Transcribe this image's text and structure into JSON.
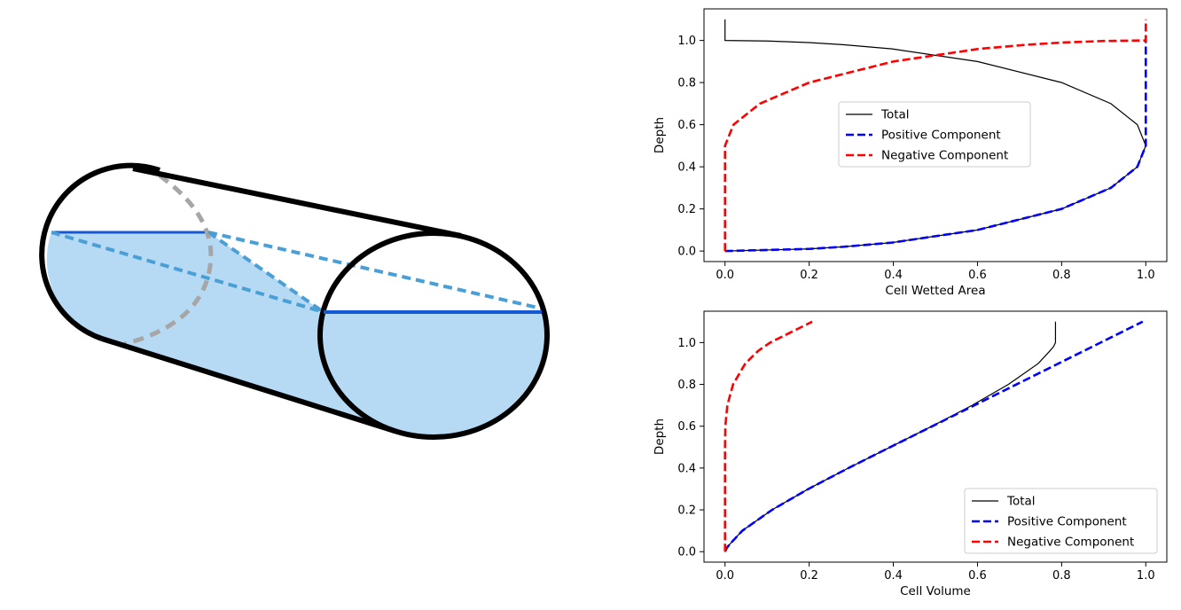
{
  "chart_data": [
    {
      "type": "line",
      "xlabel": "Cell Wetted Area",
      "ylabel": "Depth",
      "xlim": [
        -0.05,
        1.05
      ],
      "ylim": [
        -0.05,
        1.15
      ],
      "xticks": [
        0.0,
        0.2,
        0.4,
        0.6,
        0.8,
        1.0
      ],
      "yticks": [
        0.0,
        0.2,
        0.4,
        0.6,
        0.8,
        1.0
      ],
      "xtick_labels": [
        "0.0",
        "0.2",
        "0.4",
        "0.6",
        "0.8",
        "1.0"
      ],
      "ytick_labels": [
        "0.0",
        "0.2",
        "0.4",
        "0.6",
        "0.8",
        "1.0"
      ],
      "grid": false,
      "legend": "center",
      "series": [
        {
          "name": "Total",
          "color": "#000000",
          "dash": "solid",
          "points": [
            [
              0,
              0
            ],
            [
              0.199,
              0.01
            ],
            [
              0.28,
              0.02
            ],
            [
              0.397,
              0.04
            ],
            [
              0.6,
              0.1
            ],
            [
              0.8,
              0.2
            ],
            [
              0.917,
              0.3
            ],
            [
              0.98,
              0.4
            ],
            [
              1,
              0.5
            ],
            [
              0.98,
              0.6
            ],
            [
              0.917,
              0.7
            ],
            [
              0.8,
              0.8
            ],
            [
              0.6,
              0.9
            ],
            [
              0.397,
              0.96
            ],
            [
              0.28,
              0.98
            ],
            [
              0.199,
              0.99
            ],
            [
              0.1,
              0.9975
            ],
            [
              0,
              1
            ],
            [
              0,
              1.1
            ]
          ]
        },
        {
          "name": "Positive Component",
          "color": "#0000ff",
          "dash": "dashed",
          "points": [
            [
              0,
              0
            ],
            [
              0.199,
              0.01
            ],
            [
              0.28,
              0.02
            ],
            [
              0.397,
              0.04
            ],
            [
              0.6,
              0.1
            ],
            [
              0.8,
              0.2
            ],
            [
              0.917,
              0.3
            ],
            [
              0.98,
              0.4
            ],
            [
              1,
              0.5
            ],
            [
              1,
              1.1
            ]
          ]
        },
        {
          "name": "Negative Component",
          "color": "#ff0000",
          "dash": "dashed",
          "points": [
            [
              0,
              0
            ],
            [
              0,
              0.5
            ],
            [
              0.02,
              0.6
            ],
            [
              0.083,
              0.7
            ],
            [
              0.2,
              0.8
            ],
            [
              0.4,
              0.9
            ],
            [
              0.603,
              0.96
            ],
            [
              0.72,
              0.98
            ],
            [
              0.801,
              0.99
            ],
            [
              0.9,
              0.9975
            ],
            [
              1,
              1
            ],
            [
              1,
              1.1
            ]
          ]
        }
      ]
    },
    {
      "type": "line",
      "xlabel": "Cell Volume",
      "ylabel": "Depth",
      "xlim": [
        -0.05,
        1.05
      ],
      "ylim": [
        -0.05,
        1.15
      ],
      "xticks": [
        0.0,
        0.2,
        0.4,
        0.6,
        0.8,
        1.0
      ],
      "yticks": [
        0.0,
        0.2,
        0.4,
        0.6,
        0.8,
        1.0
      ],
      "xtick_labels": [
        "0.0",
        "0.2",
        "0.4",
        "0.6",
        "0.8",
        "1.0"
      ],
      "ytick_labels": [
        "0.0",
        "0.2",
        "0.4",
        "0.6",
        "0.8",
        "1.0"
      ],
      "grid": false,
      "legend": "lower right",
      "series": [
        {
          "name": "Total",
          "color": "#000000",
          "dash": "solid",
          "points": [
            [
              0,
              0
            ],
            [
              0.0048,
              0.02
            ],
            [
              0.0134,
              0.04
            ],
            [
              0.0409,
              0.1
            ],
            [
              0.1118,
              0.2
            ],
            [
              0.1982,
              0.3
            ],
            [
              0.2934,
              0.4
            ],
            [
              0.3927,
              0.5
            ],
            [
              0.492,
              0.6
            ],
            [
              0.5872,
              0.7
            ],
            [
              0.6736,
              0.8
            ],
            [
              0.7445,
              0.9
            ],
            [
              0.772,
              0.96
            ],
            [
              0.7806,
              0.98
            ],
            [
              0.7854,
              1.0
            ],
            [
              0.7854,
              1.1
            ]
          ]
        },
        {
          "name": "Positive Component",
          "color": "#0000ff",
          "dash": "dashed",
          "points": [
            [
              0,
              0
            ],
            [
              0.0048,
              0.02
            ],
            [
              0.0134,
              0.04
            ],
            [
              0.0409,
              0.1
            ],
            [
              0.1118,
              0.2
            ],
            [
              0.1982,
              0.3
            ],
            [
              0.2934,
              0.4
            ],
            [
              0.3927,
              0.5
            ],
            [
              0.4927,
              0.6
            ],
            [
              0.5927,
              0.7
            ],
            [
              0.6927,
              0.8
            ],
            [
              0.7927,
              0.9
            ],
            [
              0.8927,
              1.0
            ],
            [
              0.9927,
              1.1
            ]
          ]
        },
        {
          "name": "Negative Component",
          "color": "#ff0000",
          "dash": "dashed",
          "points": [
            [
              0,
              0
            ],
            [
              0,
              0.5
            ],
            [
              0.0007,
              0.6
            ],
            [
              0.0055,
              0.7
            ],
            [
              0.0191,
              0.8
            ],
            [
              0.0482,
              0.9
            ],
            [
              0.0787,
              0.96
            ],
            [
              0.0927,
              0.98
            ],
            [
              0.1073,
              1.0
            ],
            [
              0.2073,
              1.1
            ]
          ]
        }
      ]
    }
  ]
}
